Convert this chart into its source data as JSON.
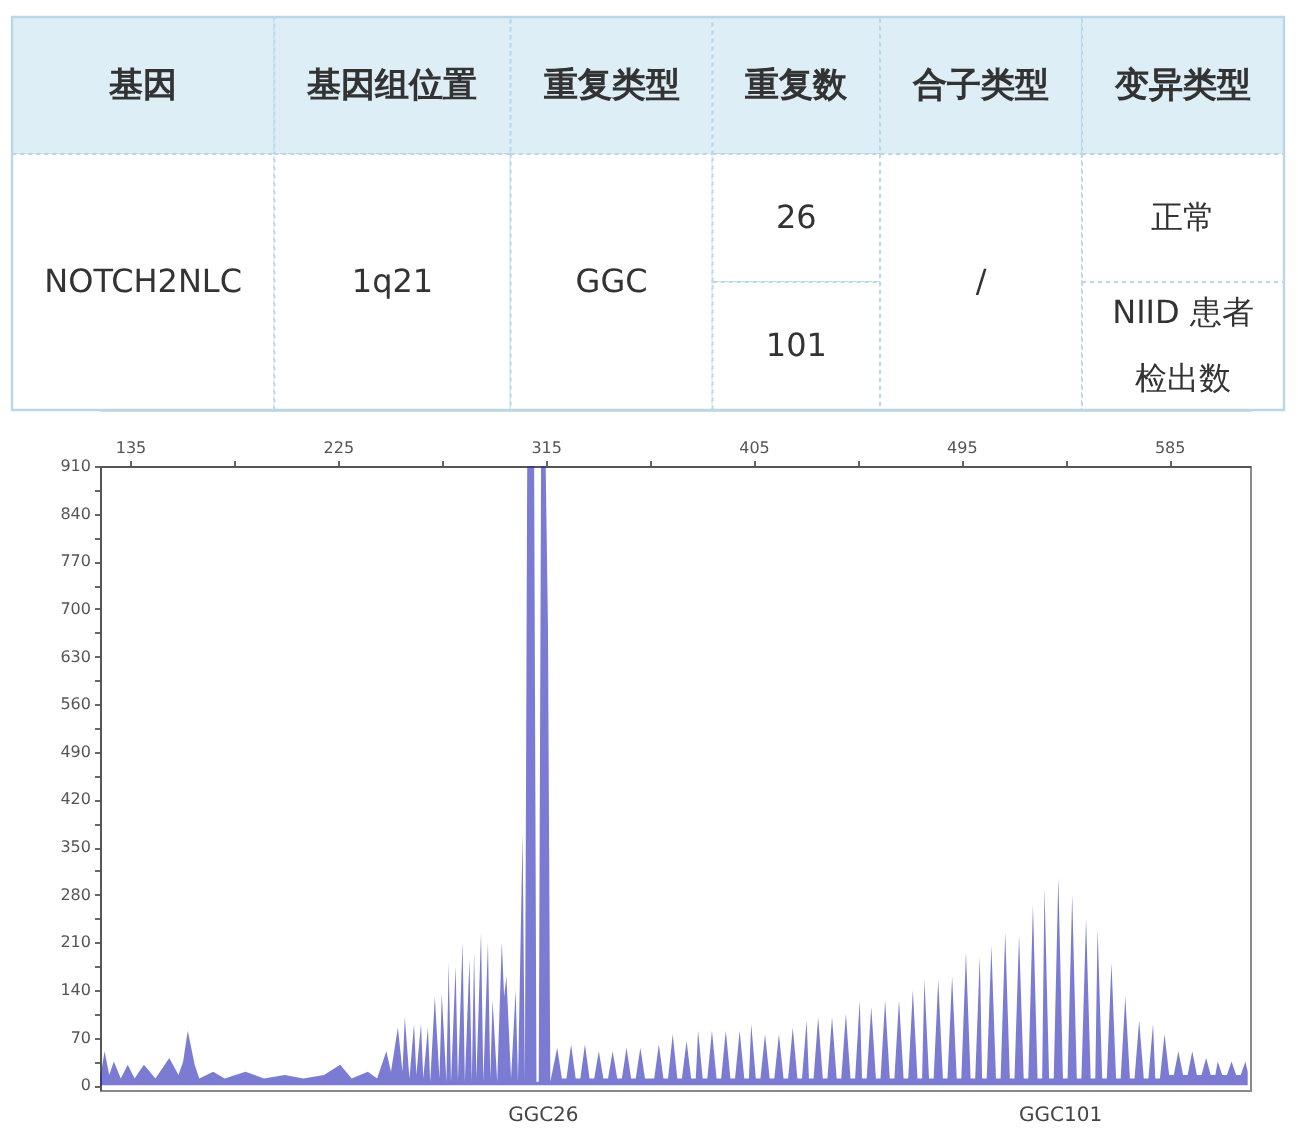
{
  "chart_data": [
    {
      "type": "other",
      "categories": [
        "基因",
        "基因组位置",
        "重复类型",
        "重复数",
        "合子类型",
        "变异类型"
      ],
      "cell_labels": [
        [
          "NOTCH2NLC",
          "1q21",
          "GGC",
          "26",
          "/",
          "正常"
        ],
        [
          null,
          null,
          null,
          "101",
          null,
          "NIID 患者检出数"
        ]
      ]
    },
    {
      "type": "area",
      "xlim": [
        122,
        620
      ],
      "ylim": [
        -7,
        910
      ],
      "xticks": [
        135,
        {
          "value": 180,
          "label": null
        },
        225,
        {
          "value": 270,
          "label": null
        },
        315,
        {
          "value": 360,
          "label": null
        },
        405,
        {
          "value": 450,
          "label": null
        },
        495,
        {
          "value": 540,
          "label": null
        },
        585
      ],
      "yticks": [
        0,
        {
          "value": 35,
          "label": null
        },
        70,
        {
          "value": 105,
          "label": null
        },
        140,
        {
          "value": 175,
          "label": null
        },
        210,
        {
          "value": 245,
          "label": null
        },
        280,
        {
          "value": 315,
          "label": null
        },
        350,
        {
          "value": 385,
          "label": null
        },
        420,
        {
          "value": 455,
          "label": null
        },
        490,
        {
          "value": 525,
          "label": null
        },
        560,
        {
          "value": 595,
          "label": null
        },
        630,
        {
          "value": 665,
          "label": null
        },
        700,
        {
          "value": 735,
          "label": null
        },
        770,
        {
          "value": 805,
          "label": null
        },
        840,
        {
          "value": 875,
          "label": null
        },
        910
      ],
      "x": [
        122,
        124,
        126,
        128,
        131,
        134,
        137,
        141,
        146,
        152,
        156,
        158,
        160,
        163,
        165,
        171,
        176,
        185,
        193,
        202,
        210,
        219,
        226,
        231,
        238,
        242,
        246,
        248,
        251,
        253,
        254,
        256,
        258,
        259,
        261,
        262,
        264,
        265,
        267,
        269,
        270,
        272,
        273,
        274,
        276,
        277,
        279,
        280,
        282,
        283,
        284,
        285,
        287,
        288,
        290,
        291,
        292,
        294,
        296,
        297,
        298,
        300,
        302,
        303,
        305,
        306,
        307,
        310,
        311,
        312,
        313,
        315,
        316,
        317,
        320,
        322,
        324,
        326,
        328,
        330,
        332,
        334,
        336,
        338,
        340,
        342,
        344,
        346,
        348,
        350,
        352,
        354,
        356,
        358,
        362,
        364,
        366,
        368,
        370,
        372,
        374,
        376,
        378,
        380,
        381,
        383,
        385,
        387,
        389,
        391,
        393,
        395,
        397,
        399,
        401,
        403,
        404,
        406,
        408,
        410,
        412,
        414,
        416,
        418,
        420,
        422,
        424,
        426,
        428,
        429,
        431,
        433,
        435,
        437,
        439,
        441,
        443,
        445,
        447,
        449,
        451,
        452,
        454,
        456,
        458,
        460,
        462,
        464,
        466,
        468,
        470,
        472,
        474,
        476,
        478,
        479,
        481,
        483,
        485,
        487,
        489,
        491,
        493,
        495,
        497,
        499,
        501,
        503,
        504,
        506,
        508,
        510,
        512,
        514,
        516,
        518,
        520,
        522,
        524,
        526,
        528,
        530,
        531,
        533,
        535,
        537,
        539,
        541,
        543,
        545,
        547,
        549,
        551,
        553,
        554,
        556,
        558,
        560,
        562,
        564,
        566,
        568,
        570,
        572,
        574,
        576,
        578,
        579,
        581,
        583,
        585,
        587,
        589,
        591,
        593,
        595,
        597,
        599,
        601,
        603,
        605,
        606,
        608,
        610,
        612,
        614,
        616,
        618,
        619
      ],
      "series": [
        {
          "color": "#2a2ab8",
          "values": [
            10,
            50,
            15,
            35,
            10,
            30,
            10,
            30,
            10,
            40,
            15,
            35,
            80,
            30,
            10,
            20,
            10,
            20,
            10,
            15,
            10,
            15,
            30,
            10,
            20,
            10,
            50,
            20,
            85,
            20,
            100,
            10,
            90,
            15,
            90,
            10,
            85,
            5,
            130,
            10,
            135,
            5,
            180,
            5,
            175,
            5,
            210,
            5,
            185,
            5,
            195,
            10,
            225,
            5,
            210,
            10,
            125,
            5,
            210,
            130,
            160,
            10,
            140,
            5,
            370,
            5,
            910,
            910,
            5,
            5,
            910,
            910,
            672,
            5,
            55,
            10,
            10,
            60,
            10,
            10,
            60,
            10,
            10,
            50,
            10,
            10,
            50,
            10,
            10,
            55,
            10,
            10,
            55,
            10,
            10,
            60,
            10,
            10,
            75,
            10,
            10,
            65,
            10,
            10,
            80,
            10,
            10,
            80,
            10,
            10,
            80,
            10,
            10,
            80,
            10,
            10,
            90,
            10,
            10,
            75,
            10,
            10,
            75,
            10,
            10,
            85,
            10,
            10,
            95,
            10,
            10,
            100,
            10,
            10,
            100,
            10,
            10,
            105,
            10,
            10,
            125,
            10,
            10,
            115,
            10,
            10,
            125,
            10,
            10,
            125,
            10,
            10,
            140,
            10,
            10,
            155,
            10,
            10,
            155,
            10,
            10,
            160,
            10,
            10,
            195,
            10,
            10,
            190,
            10,
            10,
            205,
            10,
            10,
            225,
            10,
            10,
            220,
            10,
            10,
            265,
            10,
            10,
            290,
            10,
            10,
            305,
            10,
            10,
            280,
            10,
            10,
            245,
            10,
            10,
            230,
            10,
            10,
            180,
            10,
            10,
            130,
            10,
            10,
            95,
            10,
            10,
            90,
            10,
            10,
            75,
            15,
            15,
            50,
            15,
            15,
            50,
            15,
            15,
            40,
            15,
            15,
            35,
            15,
            15,
            35,
            15,
            15,
            35,
            20
          ]
        }
      ],
      "annotations": [
        {
          "text": "GGC26",
          "x": 314,
          "y": 0
        },
        {
          "text": "GGC101",
          "x": 538,
          "y": 0
        }
      ]
    }
  ]
}
